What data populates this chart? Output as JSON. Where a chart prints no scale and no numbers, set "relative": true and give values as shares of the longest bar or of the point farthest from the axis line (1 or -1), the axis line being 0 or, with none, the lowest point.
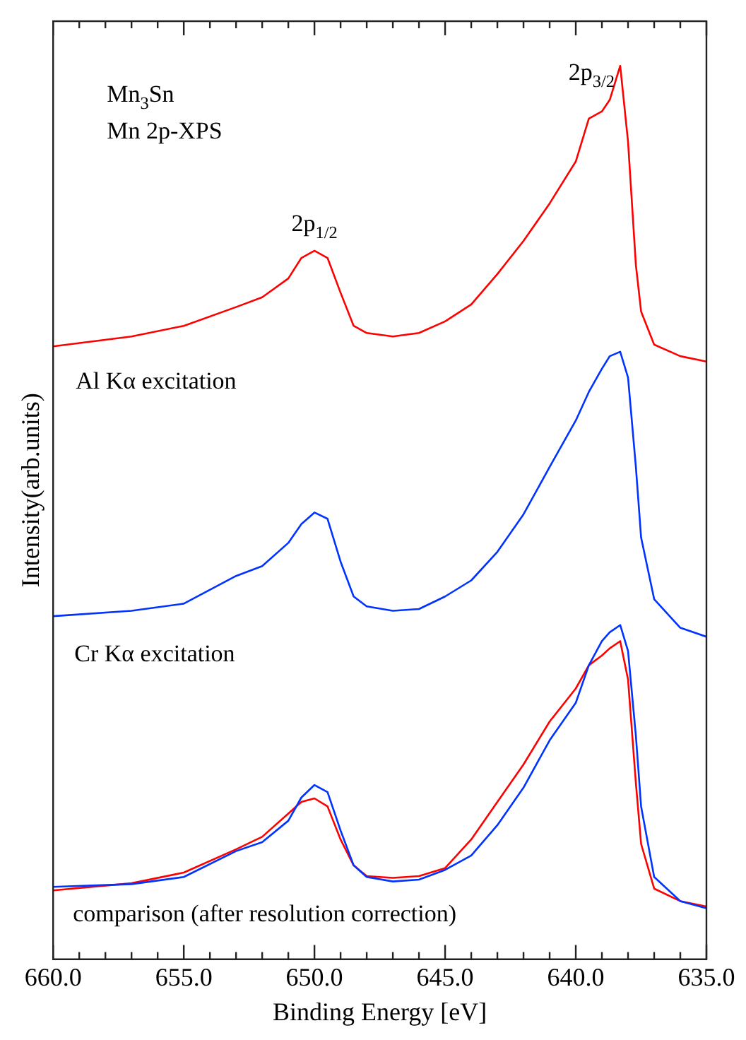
{
  "chart_data": {
    "type": "line",
    "relative": true,
    "xlabel": "Binding Energy [eV]",
    "ylabel": "Intensity(arb.units)",
    "xlim": [
      660,
      635
    ],
    "xticks": [
      {
        "value": 660,
        "label": "660.0"
      },
      {
        "value": 659,
        "label": null
      },
      {
        "value": 658,
        "label": null
      },
      {
        "value": 657,
        "label": null
      },
      {
        "value": 656,
        "label": null
      },
      {
        "value": 655,
        "label": "655.0"
      },
      {
        "value": 654,
        "label": null
      },
      {
        "value": 653,
        "label": null
      },
      {
        "value": 652,
        "label": null
      },
      {
        "value": 651,
        "label": null
      },
      {
        "value": 650,
        "label": "650.0"
      },
      {
        "value": 649,
        "label": null
      },
      {
        "value": 648,
        "label": null
      },
      {
        "value": 647,
        "label": null
      },
      {
        "value": 646,
        "label": null
      },
      {
        "value": 645,
        "label": "645.0"
      },
      {
        "value": 644,
        "label": null
      },
      {
        "value": 643,
        "label": null
      },
      {
        "value": 642,
        "label": null
      },
      {
        "value": 641,
        "label": null
      },
      {
        "value": 640,
        "label": "640.0"
      },
      {
        "value": 639,
        "label": null
      },
      {
        "value": 638,
        "label": null
      },
      {
        "value": 637,
        "label": null
      },
      {
        "value": 636,
        "label": null
      },
      {
        "value": 635,
        "label": "635.0"
      }
    ],
    "x": [
      660,
      657,
      655,
      653,
      652,
      651,
      650.5,
      650,
      649.5,
      649,
      648.5,
      648,
      647,
      646,
      645,
      644,
      643,
      642,
      641,
      640,
      639.5,
      639,
      638.7,
      638.3,
      638,
      637.7,
      637.5,
      637,
      636,
      635
    ],
    "marker": "none",
    "line_style": "solid",
    "series": [
      {
        "color": "#ff0000",
        "values": [
          0.686,
          0.697,
          0.709,
          0.73,
          0.741,
          0.762,
          0.785,
          0.793,
          0.785,
          0.746,
          0.709,
          0.701,
          0.697,
          0.701,
          0.714,
          0.733,
          0.767,
          0.804,
          0.846,
          0.893,
          0.941,
          0.949,
          0.962,
          1.0,
          0.915,
          0.777,
          0.725,
          0.688,
          0.675,
          0.669
        ]
      },
      {
        "color": "#0033ff",
        "values": [
          0.384,
          0.39,
          0.398,
          0.429,
          0.44,
          0.466,
          0.487,
          0.5,
          0.493,
          0.445,
          0.406,
          0.395,
          0.39,
          0.392,
          0.406,
          0.424,
          0.456,
          0.498,
          0.551,
          0.603,
          0.635,
          0.661,
          0.675,
          0.68,
          0.651,
          0.551,
          0.472,
          0.403,
          0.371,
          0.361
        ]
      },
      {
        "color": "#0033ff",
        "values": [
          0.081,
          0.084,
          0.092,
          0.121,
          0.131,
          0.155,
          0.181,
          0.195,
          0.187,
          0.144,
          0.105,
          0.092,
          0.087,
          0.089,
          0.1,
          0.116,
          0.15,
          0.192,
          0.245,
          0.287,
          0.329,
          0.356,
          0.366,
          0.374,
          0.345,
          0.25,
          0.171,
          0.092,
          0.065,
          0.057
        ]
      },
      {
        "color": "#ff0000",
        "values": [
          0.077,
          0.085,
          0.097,
          0.123,
          0.137,
          0.163,
          0.176,
          0.18,
          0.171,
          0.134,
          0.105,
          0.093,
          0.091,
          0.093,
          0.102,
          0.134,
          0.176,
          0.218,
          0.266,
          0.303,
          0.329,
          0.34,
          0.348,
          0.356,
          0.313,
          0.197,
          0.129,
          0.079,
          0.065,
          0.059
        ]
      }
    ],
    "annotations": [
      "Mn$_{3}$Sn",
      "Mn 2p-XPS",
      {
        "text": "2p$_{3/2}$",
        "x": 638.3,
        "y": 1.0
      },
      {
        "text": "2p$_{1/2}$",
        "x": 650,
        "y": 0.793
      },
      "Al Kα excitation",
      "Cr Kα excitation",
      "comparison (after resolution correction)"
    ]
  }
}
